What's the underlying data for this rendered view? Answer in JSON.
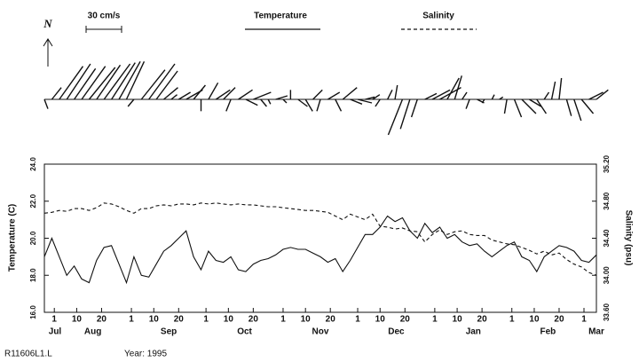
{
  "chart_data": {
    "type": "line",
    "stick": {
      "scale_label": "30 cm/s",
      "scale_value": 30,
      "north_label": "N",
      "u": [
        3,
        8,
        20,
        20,
        18,
        20,
        22,
        20,
        22,
        20,
        18,
        15,
        -5,
        20,
        22,
        18,
        12,
        5,
        10,
        14,
        10,
        0,
        8,
        12,
        10,
        -4,
        12,
        10,
        15,
        5,
        2,
        10,
        3,
        0,
        8,
        6,
        8,
        -3,
        10,
        5,
        12,
        10,
        12,
        8,
        6,
        -4,
        4,
        2,
        -12,
        -8,
        -5,
        10,
        15,
        18,
        10,
        6,
        4,
        -3,
        6,
        -2,
        2,
        3,
        -2,
        6,
        12,
        10,
        8,
        4,
        3,
        2,
        4,
        6,
        10,
        12,
        10
      ],
      "v": [
        -8,
        10,
        28,
        30,
        26,
        28,
        27,
        29,
        30,
        31,
        32,
        32,
        -6,
        25,
        30,
        24,
        10,
        4,
        6,
        8,
        12,
        -10,
        14,
        8,
        10,
        -10,
        8,
        -5,
        6,
        -6,
        -4,
        3,
        -3,
        8,
        -6,
        -10,
        8,
        -10,
        6,
        -10,
        10,
        -4,
        -3,
        2,
        4,
        -6,
        8,
        12,
        -30,
        -25,
        -15,
        5,
        8,
        10,
        18,
        20,
        6,
        -8,
        -3,
        -3,
        4,
        2,
        -12,
        -15,
        -12,
        -6,
        -12,
        6,
        15,
        18,
        -14,
        -18,
        -12,
        6,
        8
      ]
    },
    "x": [
      "1995-07-28",
      "1995-07-31",
      "1995-08-03",
      "1995-08-06",
      "1995-08-09",
      "1995-08-12",
      "1995-08-15",
      "1995-08-18",
      "1995-08-21",
      "1995-08-24",
      "1995-08-27",
      "1995-08-30",
      "1995-09-02",
      "1995-09-05",
      "1995-09-08",
      "1995-09-11",
      "1995-09-14",
      "1995-09-17",
      "1995-09-20",
      "1995-09-23",
      "1995-09-26",
      "1995-09-29",
      "1995-10-02",
      "1995-10-05",
      "1995-10-08",
      "1995-10-11",
      "1995-10-14",
      "1995-10-17",
      "1995-10-20",
      "1995-10-23",
      "1995-10-26",
      "1995-10-29",
      "1995-11-01",
      "1995-11-04",
      "1995-11-07",
      "1995-11-10",
      "1995-11-13",
      "1995-11-16",
      "1995-11-19",
      "1995-11-22",
      "1995-11-25",
      "1995-11-28",
      "1995-12-01",
      "1995-12-04",
      "1995-12-07",
      "1995-12-10",
      "1995-12-13",
      "1995-12-16",
      "1995-12-19",
      "1995-12-22",
      "1995-12-25",
      "1995-12-28",
      "1995-12-31",
      "1996-01-03",
      "1996-01-06",
      "1996-01-09",
      "1996-01-12",
      "1996-01-15",
      "1996-01-18",
      "1996-01-21",
      "1996-01-24",
      "1996-01-27",
      "1996-01-30",
      "1996-02-02",
      "1996-02-05",
      "1996-02-08",
      "1996-02-11",
      "1996-02-14",
      "1996-02-17",
      "1996-02-20",
      "1996-02-23",
      "1996-02-26",
      "1996-02-29",
      "1996-03-03",
      "1996-03-06"
    ],
    "xlim": [
      "1995-07-28",
      "1996-03-06"
    ],
    "xticks": [
      {
        "value": "1995-08-01",
        "label": "1"
      },
      {
        "value": "1995-08-10",
        "label": "10"
      },
      {
        "value": "1995-08-20",
        "label": "20"
      },
      {
        "value": "1995-09-01",
        "label": "1"
      },
      {
        "value": "1995-09-10",
        "label": "10"
      },
      {
        "value": "1995-09-20",
        "label": "20"
      },
      {
        "value": "1995-10-01",
        "label": "1"
      },
      {
        "value": "1995-10-10",
        "label": "10"
      },
      {
        "value": "1995-10-20",
        "label": "20"
      },
      {
        "value": "1995-11-01",
        "label": "1"
      },
      {
        "value": "1995-11-10",
        "label": "10"
      },
      {
        "value": "1995-11-20",
        "label": "20"
      },
      {
        "value": "1995-12-01",
        "label": "1"
      },
      {
        "value": "1995-12-10",
        "label": "10"
      },
      {
        "value": "1995-12-20",
        "label": "20"
      },
      {
        "value": "1996-01-01",
        "label": "1"
      },
      {
        "value": "1996-01-10",
        "label": "10"
      },
      {
        "value": "1996-01-20",
        "label": "20"
      },
      {
        "value": "1996-02-01",
        "label": "1"
      },
      {
        "value": "1996-02-10",
        "label": "10"
      },
      {
        "value": "1996-02-20",
        "label": "20"
      },
      {
        "value": "1996-03-01",
        "label": "1"
      }
    ],
    "month_labels": [
      "Jul",
      "Aug",
      "Sep",
      "Oct",
      "Nov",
      "Dec",
      "Jan",
      "Feb",
      "Mar"
    ],
    "ylabel": "Temperature (C)",
    "y2label": "Salinity (psu)",
    "ylim": [
      16,
      24
    ],
    "yticks": [
      {
        "value": 16,
        "label": "16.0"
      },
      {
        "value": 18,
        "label": "18.0"
      },
      {
        "value": 20,
        "label": "20.0"
      },
      {
        "value": 22,
        "label": "22.0"
      },
      {
        "value": 24,
        "label": "24.0"
      }
    ],
    "y2lim": [
      33.6,
      35.2
    ],
    "y2ticks": [
      {
        "value": 33.6,
        "label": "33.60"
      },
      {
        "value": 34.0,
        "label": "34.00"
      },
      {
        "value": 34.4,
        "label": "34.40"
      },
      {
        "value": 34.8,
        "label": "34.80"
      },
      {
        "value": 35.2,
        "label": "35.20"
      }
    ],
    "series": [
      {
        "name": "Temperature",
        "color": "#111111",
        "dash": false,
        "values": [
          19.0,
          20.0,
          19.0,
          18.0,
          18.5,
          17.8,
          17.6,
          18.8,
          19.5,
          19.6,
          18.6,
          17.6,
          19.0,
          18.0,
          17.9,
          18.6,
          19.3,
          19.6,
          20.0,
          20.4,
          19.0,
          18.3,
          19.3,
          18.8,
          18.7,
          19.0,
          18.3,
          18.2,
          18.6,
          18.8,
          18.9,
          19.1,
          19.4,
          19.5,
          19.4,
          19.4,
          19.2,
          19.0,
          18.7,
          18.9,
          18.2,
          18.8,
          19.5,
          20.2,
          20.2,
          20.6,
          21.2,
          20.9,
          21.1,
          20.4,
          20.0,
          20.8,
          20.3,
          20.6,
          20.0,
          20.2,
          19.8,
          19.6,
          19.7,
          19.3,
          19.0,
          19.3,
          19.6,
          19.8,
          19.0,
          18.8,
          18.2,
          19.0,
          19.3,
          19.6,
          19.5,
          19.3,
          18.8,
          18.7,
          19.1
        ]
      },
      {
        "name": "Salinity",
        "color": "#111111",
        "dash": true,
        "axis": "y2",
        "values": [
          34.67,
          34.68,
          34.7,
          34.69,
          34.72,
          34.72,
          34.7,
          34.73,
          34.78,
          34.77,
          34.74,
          34.7,
          34.67,
          34.72,
          34.72,
          34.75,
          34.76,
          34.75,
          34.77,
          34.77,
          34.76,
          34.78,
          34.77,
          34.78,
          34.77,
          34.76,
          34.77,
          34.76,
          34.76,
          34.75,
          34.74,
          34.74,
          34.73,
          34.72,
          34.71,
          34.7,
          34.7,
          34.69,
          34.68,
          34.64,
          34.6,
          34.66,
          34.63,
          34.6,
          34.66,
          34.53,
          34.52,
          34.5,
          34.51,
          34.48,
          34.47,
          34.36,
          34.44,
          34.49,
          34.44,
          34.47,
          34.48,
          34.44,
          34.43,
          34.43,
          34.38,
          34.36,
          34.34,
          34.33,
          34.3,
          34.27,
          34.23,
          34.26,
          34.22,
          34.24,
          34.17,
          34.12,
          34.09,
          34.03,
          34.0
        ]
      }
    ],
    "footer_id": "R11606L1.L",
    "footer_year": "Year: 1995"
  }
}
